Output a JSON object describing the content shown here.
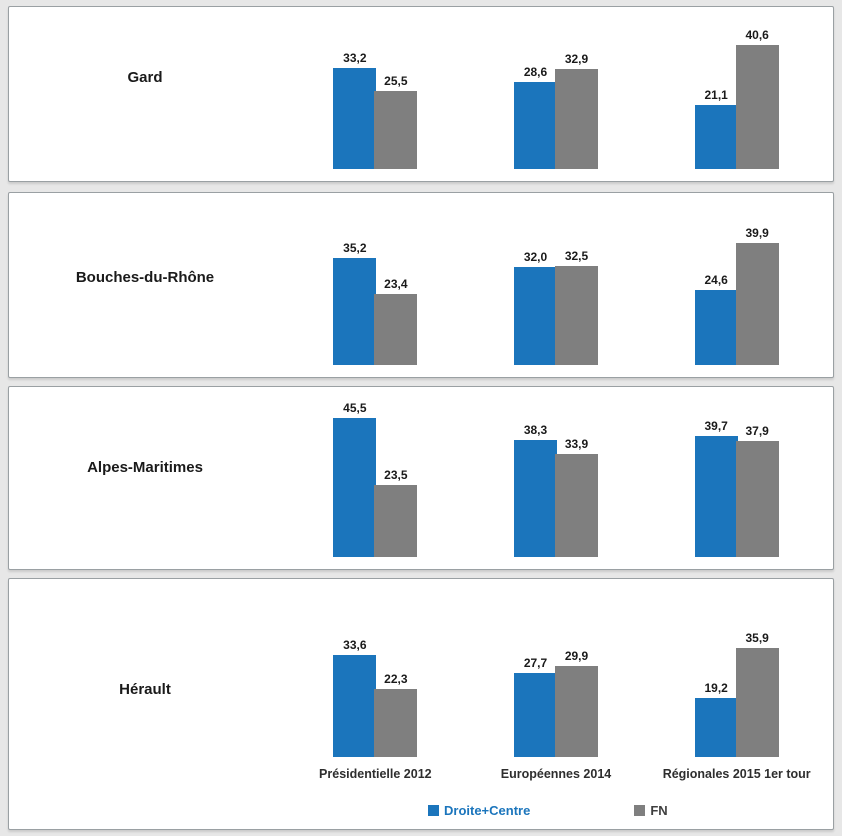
{
  "colors": {
    "droite_centre": "#1b75bc",
    "fn": "#7f7f7f",
    "value_label_text": "#1a1a1a",
    "axis_label_text": "#2e2e2e",
    "legend_droite_centre_text": "#1b75bc",
    "legend_fn_text": "#3f3f3f",
    "panel_background": "#ffffff",
    "panel_border": "#9aa0a3",
    "page_background": "#e7e7e7"
  },
  "legend": [
    {
      "label": "Droite+Centre",
      "color_key": "droite_centre",
      "text_color": "#1b75bc"
    },
    {
      "label": "FN",
      "color_key": "fn",
      "text_color": "#3f3f3f"
    }
  ],
  "chart_data": {
    "type": "bar",
    "categories": [
      "Présidentielle 2012",
      "Européennes 2014",
      "Régionales 2015 1er tour"
    ],
    "series_names": [
      "Droite+Centre",
      "FN"
    ],
    "panels": [
      {
        "department": "Gard",
        "series": [
          {
            "name": "Droite+Centre",
            "values": [
              33.2,
              28.6,
              21.1
            ]
          },
          {
            "name": "FN",
            "values": [
              25.5,
              32.9,
              40.6
            ]
          }
        ]
      },
      {
        "department": "Bouches-du-Rhône",
        "series": [
          {
            "name": "Droite+Centre",
            "values": [
              35.2,
              32.0,
              24.6
            ]
          },
          {
            "name": "FN",
            "values": [
              23.4,
              32.5,
              39.9
            ]
          }
        ]
      },
      {
        "department": "Alpes-Maritimes",
        "series": [
          {
            "name": "Droite+Centre",
            "values": [
              45.5,
              38.3,
              39.7
            ]
          },
          {
            "name": "FN",
            "values": [
              23.5,
              33.9,
              37.9
            ]
          }
        ]
      },
      {
        "department": "Hérault",
        "series": [
          {
            "name": "Droite+Centre",
            "values": [
              33.6,
              27.7,
              19.2
            ]
          },
          {
            "name": "FN",
            "values": [
              22.3,
              29.9,
              35.9
            ]
          }
        ]
      }
    ],
    "value_label_decimal_separator": ",",
    "ylim": [
      0,
      50
    ],
    "grid": false,
    "legend_position": "bottom"
  }
}
